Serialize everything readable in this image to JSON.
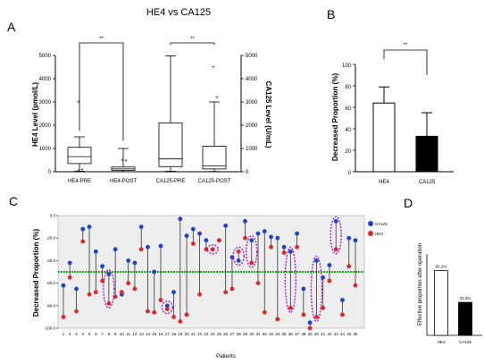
{
  "panel_labels": {
    "a": "A",
    "b": "B",
    "c": "C",
    "d": "D"
  },
  "colors": {
    "ca125": "#1f3fd1",
    "he4": "#e0262a",
    "threshold": "#11b411",
    "ellipse": "#a020c0",
    "panel_c_bg": "#eeeeee"
  },
  "chart_data": [
    {
      "id": "A",
      "type": "boxplot",
      "title": "HE4 vs CA125",
      "ylabel": "HE4 Level (pmol/L)",
      "ylabel_right": "CA125 Level (U/mL)",
      "ylim": [
        0,
        5000
      ],
      "yticks": [
        0,
        1000,
        2000,
        3000,
        4000,
        5000
      ],
      "ylim_right": [
        0,
        5000
      ],
      "yticks_right": [
        0,
        1000,
        2000,
        3000,
        4000,
        5000
      ],
      "categories": [
        "HE4-PRE",
        "HE4-POST",
        "CA125-PRE",
        "CA125-POST"
      ],
      "boxes": [
        {
          "whisker_low": 20,
          "q1": 350,
          "median": 650,
          "q3": 1050,
          "whisker_high": 1500,
          "outliers": [
            3000,
            100,
            50
          ]
        },
        {
          "whisker_low": 5,
          "q1": 60,
          "median": 120,
          "q3": 200,
          "whisker_high": 1000,
          "outliers": [
            500,
            480
          ]
        },
        {
          "whisker_low": 20,
          "q1": 220,
          "median": 550,
          "q3": 2100,
          "whisker_high": 4980,
          "outliers": []
        },
        {
          "whisker_low": 10,
          "q1": 120,
          "median": 250,
          "q3": 1100,
          "whisker_high": 3000,
          "outliers": [
            4500,
            3200
          ]
        }
      ],
      "significance": [
        {
          "from": 0,
          "to": 1,
          "label": "**"
        },
        {
          "from": 2,
          "to": 3,
          "label": "**"
        }
      ]
    },
    {
      "id": "B",
      "type": "bar",
      "ylabel": "Decreased Proportion (%)",
      "ylim": [
        0,
        100
      ],
      "yticks": [
        0,
        20,
        40,
        60,
        80,
        100
      ],
      "categories": [
        "HE4",
        "CA125"
      ],
      "values": [
        64,
        33
      ],
      "error_upper": [
        79,
        55
      ],
      "bar_fills": [
        "#ffffff",
        "#000000"
      ],
      "significance": [
        {
          "from": 0,
          "to": 1,
          "label": "**"
        }
      ]
    },
    {
      "id": "C",
      "type": "scatter",
      "xlabel": "Patients",
      "ylabel": "Decreased Proportion (%)",
      "ylim": [
        -100,
        0
      ],
      "yticks": [
        "0.0",
        "-20.0",
        "-40.0",
        "-60.0",
        "-80.0",
        "-100.0"
      ],
      "threshold": -50,
      "x": [
        1,
        2,
        3,
        4,
        5,
        6,
        7,
        8,
        9,
        10,
        11,
        12,
        13,
        14,
        15,
        16,
        17,
        18,
        19,
        20,
        21,
        22,
        23,
        24,
        25,
        26,
        27,
        28,
        29,
        30,
        31,
        32,
        33,
        34,
        35,
        36,
        37,
        38,
        39,
        40,
        41,
        42,
        43,
        44,
        45,
        46
      ],
      "series": [
        {
          "name": "CA125",
          "values": [
            -62,
            -42,
            -65,
            -12,
            -10,
            -32,
            -45,
            -52,
            -30,
            -70,
            -40,
            -42,
            -10,
            -28,
            -50,
            -27,
            -80,
            -68,
            -3,
            -18,
            -12,
            -16,
            -22,
            -30,
            -22,
            -9,
            -37,
            -40,
            -5,
            -22,
            -16,
            -14,
            -19,
            -20,
            -28,
            -32,
            -16,
            -65,
            -95,
            -40,
            -55,
            -44,
            -5,
            -75,
            -20,
            -22
          ],
          "ellipses": [
            8,
            17,
            24,
            28,
            30,
            36,
            40,
            43
          ]
        },
        {
          "name": "HE4",
          "values": [
            -90,
            -55,
            -85,
            -23,
            -70,
            -68,
            -58,
            -78,
            -72,
            -68,
            -60,
            -65,
            -30,
            -85,
            -86,
            -75,
            -83,
            -90,
            -94,
            -88,
            -25,
            -70,
            -30,
            -30,
            -22,
            -68,
            -65,
            -32,
            -20,
            -42,
            -60,
            -86,
            -28,
            -92,
            -33,
            -82,
            -28,
            -88,
            -100,
            -90,
            -82,
            -58,
            -30,
            -88,
            -45,
            -62
          ]
        }
      ]
    },
    {
      "id": "D",
      "type": "bar",
      "ylabel": "Effective proportion after operation",
      "categories": [
        "HE4",
        "CA125"
      ],
      "values": [
        65.2,
        33.3
      ],
      "value_labels": [
        "65.2%",
        "33.3%"
      ],
      "bar_fills": [
        "#ffffff",
        "#000000"
      ],
      "ylim": [
        0,
        100
      ]
    }
  ]
}
